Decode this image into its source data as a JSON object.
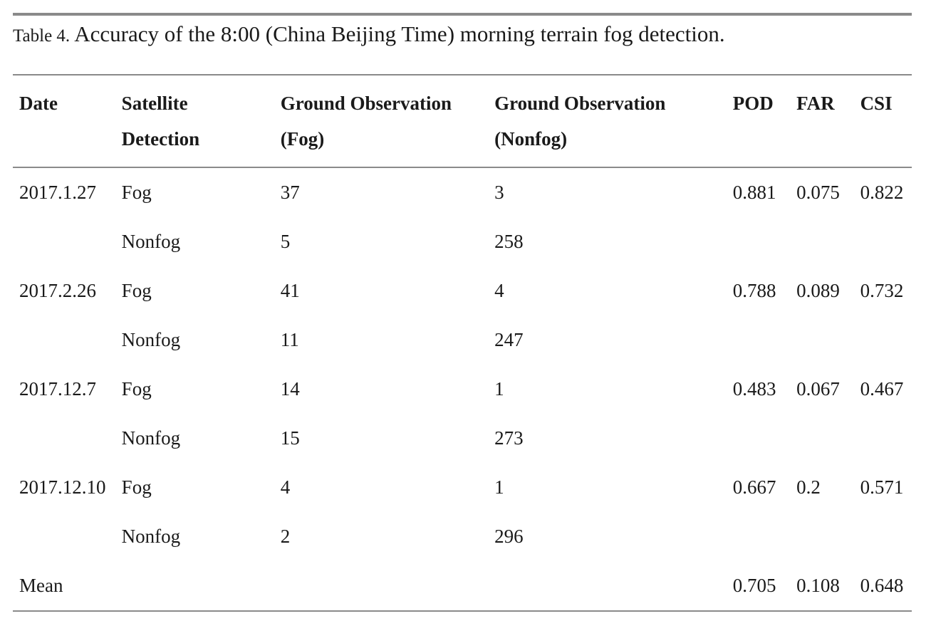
{
  "caption": {
    "label": "Table 4.",
    "text": "Accuracy of the 8:00 (China Beijing Time) morning terrain fog detection."
  },
  "headers": {
    "date": "Date",
    "satellite_line1": "Satellite",
    "satellite_line2": "Detection",
    "ground_fog_line1": "Ground Observation",
    "ground_fog_line2": "(Fog)",
    "ground_nonfog_line1": "Ground Observation",
    "ground_nonfog_line2": "(Nonfog)",
    "pod": "POD",
    "far": "FAR",
    "csi": "CSI"
  },
  "rows": [
    {
      "date": "2017.1.27",
      "satellite": "Fog",
      "ground_fog": "37",
      "ground_nonfog": "3",
      "pod": "0.881",
      "far": "0.075",
      "csi": "0.822"
    },
    {
      "date": "",
      "satellite": "Nonfog",
      "ground_fog": "5",
      "ground_nonfog": "258",
      "pod": "",
      "far": "",
      "csi": ""
    },
    {
      "date": "2017.2.26",
      "satellite": "Fog",
      "ground_fog": "41",
      "ground_nonfog": "4",
      "pod": "0.788",
      "far": "0.089",
      "csi": "0.732"
    },
    {
      "date": "",
      "satellite": "Nonfog",
      "ground_fog": "11",
      "ground_nonfog": "247",
      "pod": "",
      "far": "",
      "csi": ""
    },
    {
      "date": "2017.12.7",
      "satellite": "Fog",
      "ground_fog": "14",
      "ground_nonfog": "1",
      "pod": "0.483",
      "far": "0.067",
      "csi": "0.467"
    },
    {
      "date": "",
      "satellite": "Nonfog",
      "ground_fog": "15",
      "ground_nonfog": "273",
      "pod": "",
      "far": "",
      "csi": ""
    },
    {
      "date": "2017.12.10",
      "satellite": "Fog",
      "ground_fog": "4",
      "ground_nonfog": "1",
      "pod": "0.667",
      "far": "0.2",
      "csi": "0.571"
    },
    {
      "date": "",
      "satellite": "Nonfog",
      "ground_fog": "2",
      "ground_nonfog": "296",
      "pod": "",
      "far": "",
      "csi": ""
    },
    {
      "date": "Mean",
      "satellite": "",
      "ground_fog": "",
      "ground_nonfog": "",
      "pod": "0.705",
      "far": "0.108",
      "csi": "0.648"
    }
  ]
}
